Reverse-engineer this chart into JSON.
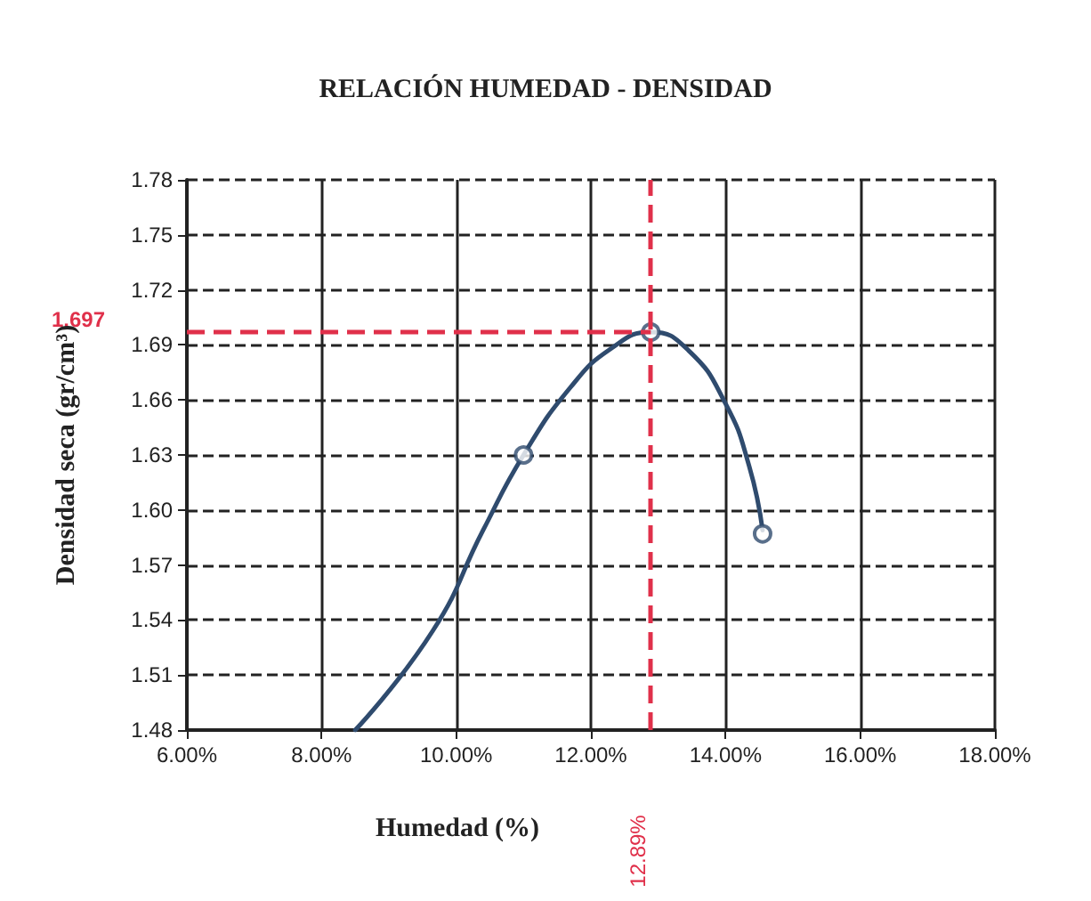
{
  "chart_data": {
    "type": "line",
    "title": "RELACIÓN HUMEDAD - DENSIDAD",
    "xlabel": "Humedad (%)",
    "ylabel": "Densidad seca (gr/cm³)",
    "xlim": [
      6,
      18
    ],
    "xticks": [
      {
        "value": 6,
        "label": "6.00%"
      },
      {
        "value": 8,
        "label": "8.00%"
      },
      {
        "value": 10,
        "label": "10.00%"
      },
      {
        "value": 12,
        "label": "12.00%"
      },
      {
        "value": 14,
        "label": "14.00%"
      },
      {
        "value": 16,
        "label": "16.00%"
      },
      {
        "value": 18,
        "label": "18.00%"
      }
    ],
    "ylim": [
      1.48,
      1.78
    ],
    "yticks": [
      1.48,
      1.51,
      1.54,
      {
        "value": 1.57,
        "label": "1.57"
      },
      {
        "value": 1.6,
        "label": "1.60"
      },
      1.63,
      1.66,
      1.69,
      1.72,
      1.75,
      1.78
    ],
    "grid": true,
    "series": [
      {
        "color": "#2f4b6e",
        "marker": "none",
        "line_style": "solid",
        "x": [
          8.5,
          9.65,
          10.4,
          11.0,
          11.7,
          12.3,
          12.89,
          13.45,
          14.0,
          14.35,
          14.55
        ],
        "values": [
          1.48,
          1.534,
          1.589,
          1.63,
          1.667,
          1.688,
          1.697,
          1.687,
          1.658,
          1.624,
          1.589
        ]
      },
      {
        "type": "scatter",
        "color": "#2f4b6e",
        "marker": "circle",
        "x": [
          11.0,
          12.89,
          14.55
        ],
        "values": [
          1.63,
          1.697,
          1.587
        ]
      }
    ],
    "ref_lines": [
      {
        "axis": "x",
        "value": 12.89,
        "label": "12.89%",
        "color": "#e0304a",
        "line_style": "dashed"
      },
      {
        "axis": "y",
        "value": 1.697,
        "label": "1.697",
        "color": "#e0304a",
        "line_style": "dashed"
      }
    ]
  }
}
